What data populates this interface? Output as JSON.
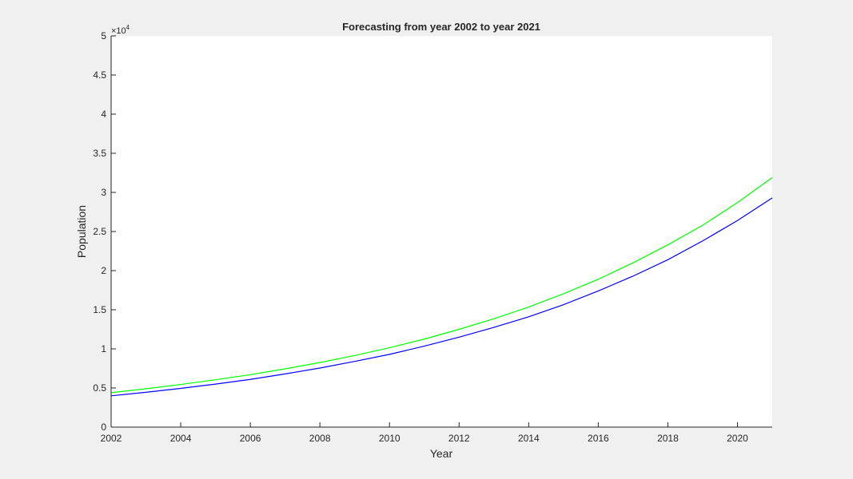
{
  "figure": {
    "background": "#f0f0f0",
    "axes_background": "#ffffff"
  },
  "chart_data": {
    "type": "line",
    "title": "Forecasting from year 2002 to year 2021",
    "xlabel": "Year",
    "ylabel": "Population",
    "xlim": [
      2002,
      2021
    ],
    "ylim": [
      0,
      50000
    ],
    "xticks": [
      2002,
      2004,
      2006,
      2008,
      2010,
      2012,
      2014,
      2016,
      2018,
      2020
    ],
    "xtick_labels": [
      "2002",
      "2004",
      "2006",
      "2008",
      "2010",
      "2012",
      "2014",
      "2016",
      "2018",
      "2020"
    ],
    "yticks": [
      0,
      5000,
      10000,
      15000,
      20000,
      25000,
      30000,
      35000,
      40000,
      45000,
      50000
    ],
    "ytick_labels": [
      "0",
      "0.5",
      "1",
      "1.5",
      "2",
      "2.5",
      "3",
      "3.5",
      "4",
      "4.5",
      "5"
    ],
    "exponent_label": "×10",
    "exponent_power": "4",
    "grid": false,
    "legend": "none",
    "x": [
      2002,
      2003,
      2004,
      2005,
      2006,
      2007,
      2008,
      2009,
      2010,
      2011,
      2012,
      2013,
      2014,
      2015,
      2016,
      2017,
      2018,
      2019,
      2020,
      2021
    ],
    "series": [
      {
        "color": "#00ff00",
        "values": [
          4400,
          4900,
          5450,
          6050,
          6700,
          7450,
          8250,
          9150,
          10150,
          11250,
          12500,
          13850,
          15350,
          17050,
          18900,
          21000,
          23300,
          25800,
          28700,
          31900
        ]
      },
      {
        "color": "#0000ff",
        "values": [
          4000,
          4450,
          4950,
          5500,
          6100,
          6800,
          7550,
          8400,
          9300,
          10350,
          11500,
          12750,
          14100,
          15650,
          17400,
          19300,
          21400,
          23800,
          26400,
          29300
        ]
      }
    ]
  }
}
